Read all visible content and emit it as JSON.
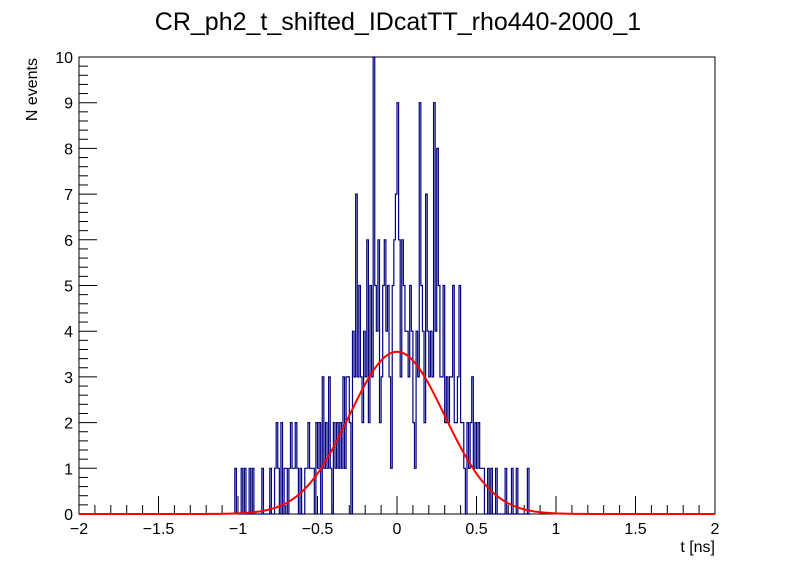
{
  "chart_data": {
    "type": "histogram",
    "title": "CR_ph2_t_shifted_IDcatTT_rho440-2000_1",
    "xlabel": "t [ns]",
    "ylabel": "N events",
    "xlim": [
      -2,
      2
    ],
    "ylim": [
      0,
      10
    ],
    "x_ticks": [
      -2,
      -1.5,
      -1,
      -0.5,
      0,
      0.5,
      1,
      1.5,
      2
    ],
    "x_tick_labels": [
      "−2",
      "−1.5",
      "−1",
      "−0.5",
      "0",
      "0.5",
      "1",
      "1.5",
      "2"
    ],
    "y_ticks": [
      0,
      1,
      2,
      3,
      4,
      5,
      6,
      7,
      8,
      9,
      10
    ],
    "y_tick_labels": [
      "0",
      "1",
      "2",
      "3",
      "4",
      "5",
      "6",
      "7",
      "8",
      "9",
      "10"
    ],
    "histogram": {
      "name": "data",
      "color": "#000080",
      "bin_width": 0.01,
      "bins": [
        [
          -1.02,
          1
        ],
        [
          -1.01,
          0
        ],
        [
          -1.0,
          0
        ],
        [
          -0.99,
          0
        ],
        [
          -0.98,
          1
        ],
        [
          -0.97,
          0
        ],
        [
          -0.96,
          1
        ],
        [
          -0.95,
          0
        ],
        [
          -0.94,
          0
        ],
        [
          -0.93,
          1
        ],
        [
          -0.92,
          0
        ],
        [
          -0.91,
          1
        ],
        [
          -0.9,
          0
        ],
        [
          -0.89,
          0
        ],
        [
          -0.88,
          0
        ],
        [
          -0.87,
          0
        ],
        [
          -0.86,
          0
        ],
        [
          -0.85,
          1
        ],
        [
          -0.84,
          0
        ],
        [
          -0.83,
          0
        ],
        [
          -0.82,
          0
        ],
        [
          -0.81,
          0
        ],
        [
          -0.8,
          1
        ],
        [
          -0.79,
          0
        ],
        [
          -0.78,
          0
        ],
        [
          -0.77,
          1
        ],
        [
          -0.76,
          2
        ],
        [
          -0.75,
          1
        ],
        [
          -0.74,
          0
        ],
        [
          -0.73,
          2
        ],
        [
          -0.72,
          0
        ],
        [
          -0.71,
          1
        ],
        [
          -0.7,
          1
        ],
        [
          -0.69,
          0
        ],
        [
          -0.68,
          1
        ],
        [
          -0.67,
          2
        ],
        [
          -0.66,
          1
        ],
        [
          -0.65,
          1
        ],
        [
          -0.64,
          2
        ],
        [
          -0.63,
          1
        ],
        [
          -0.62,
          0
        ],
        [
          -0.61,
          1
        ],
        [
          -0.6,
          0
        ],
        [
          -0.59,
          0
        ],
        [
          -0.58,
          1
        ],
        [
          -0.57,
          1
        ],
        [
          -0.56,
          2
        ],
        [
          -0.55,
          1
        ],
        [
          -0.54,
          1
        ],
        [
          -0.53,
          1
        ],
        [
          -0.52,
          0
        ],
        [
          -0.51,
          2
        ],
        [
          -0.5,
          1
        ],
        [
          -0.49,
          2
        ],
        [
          -0.48,
          0
        ],
        [
          -0.47,
          3
        ],
        [
          -0.46,
          1
        ],
        [
          -0.45,
          2
        ],
        [
          -0.44,
          1
        ],
        [
          -0.43,
          3
        ],
        [
          -0.42,
          1
        ],
        [
          -0.41,
          0
        ],
        [
          -0.4,
          2
        ],
        [
          -0.39,
          1
        ],
        [
          -0.38,
          2
        ],
        [
          -0.37,
          1
        ],
        [
          -0.36,
          2
        ],
        [
          -0.35,
          1
        ],
        [
          -0.34,
          3
        ],
        [
          -0.33,
          1
        ],
        [
          -0.32,
          3
        ],
        [
          -0.31,
          3
        ],
        [
          -0.3,
          2
        ],
        [
          -0.29,
          0
        ],
        [
          -0.28,
          4
        ],
        [
          -0.27,
          3
        ],
        [
          -0.26,
          7
        ],
        [
          -0.25,
          3
        ],
        [
          -0.24,
          5
        ],
        [
          -0.23,
          3
        ],
        [
          -0.22,
          2
        ],
        [
          -0.21,
          4
        ],
        [
          -0.2,
          3
        ],
        [
          -0.19,
          6
        ],
        [
          -0.18,
          2
        ],
        [
          -0.17,
          5
        ],
        [
          -0.16,
          3
        ],
        [
          -0.15,
          10
        ],
        [
          -0.14,
          5
        ],
        [
          -0.13,
          4
        ],
        [
          -0.12,
          6
        ],
        [
          -0.11,
          2
        ],
        [
          -0.1,
          3
        ],
        [
          -0.09,
          5
        ],
        [
          -0.08,
          6
        ],
        [
          -0.07,
          4
        ],
        [
          -0.06,
          5
        ],
        [
          -0.05,
          3
        ],
        [
          -0.04,
          1
        ],
        [
          -0.03,
          5
        ],
        [
          -0.02,
          6
        ],
        [
          -0.01,
          7
        ],
        [
          0.0,
          9
        ],
        [
          0.01,
          6
        ],
        [
          0.02,
          3
        ],
        [
          0.03,
          6
        ],
        [
          0.04,
          5
        ],
        [
          0.05,
          4
        ],
        [
          0.06,
          4
        ],
        [
          0.07,
          3
        ],
        [
          0.08,
          5
        ],
        [
          0.09,
          4
        ],
        [
          0.1,
          2
        ],
        [
          0.11,
          1
        ],
        [
          0.12,
          4
        ],
        [
          0.13,
          3
        ],
        [
          0.14,
          9
        ],
        [
          0.15,
          5
        ],
        [
          0.16,
          4
        ],
        [
          0.17,
          2
        ],
        [
          0.18,
          7
        ],
        [
          0.19,
          4
        ],
        [
          0.2,
          3
        ],
        [
          0.21,
          4
        ],
        [
          0.22,
          3
        ],
        [
          0.23,
          9
        ],
        [
          0.24,
          4
        ],
        [
          0.25,
          8
        ],
        [
          0.26,
          5
        ],
        [
          0.27,
          3
        ],
        [
          0.28,
          3
        ],
        [
          0.29,
          5
        ],
        [
          0.3,
          2
        ],
        [
          0.31,
          3
        ],
        [
          0.32,
          2
        ],
        [
          0.33,
          3
        ],
        [
          0.34,
          3
        ],
        [
          0.35,
          5
        ],
        [
          0.36,
          2
        ],
        [
          0.37,
          2
        ],
        [
          0.38,
          3
        ],
        [
          0.39,
          5
        ],
        [
          0.4,
          2
        ],
        [
          0.41,
          2
        ],
        [
          0.42,
          1
        ],
        [
          0.43,
          0
        ],
        [
          0.44,
          2
        ],
        [
          0.45,
          1
        ],
        [
          0.46,
          2
        ],
        [
          0.47,
          3
        ],
        [
          0.48,
          1
        ],
        [
          0.49,
          2
        ],
        [
          0.5,
          1
        ],
        [
          0.51,
          2
        ],
        [
          0.52,
          1
        ],
        [
          0.53,
          1
        ],
        [
          0.54,
          1
        ],
        [
          0.55,
          0
        ],
        [
          0.56,
          0
        ],
        [
          0.57,
          1
        ],
        [
          0.58,
          0
        ],
        [
          0.59,
          1
        ],
        [
          0.6,
          0
        ],
        [
          0.61,
          0
        ],
        [
          0.62,
          1
        ],
        [
          0.63,
          0
        ],
        [
          0.64,
          0
        ],
        [
          0.65,
          0
        ],
        [
          0.66,
          0
        ],
        [
          0.67,
          0
        ],
        [
          0.68,
          1
        ],
        [
          0.69,
          0
        ],
        [
          0.7,
          0
        ],
        [
          0.71,
          0
        ],
        [
          0.72,
          1
        ],
        [
          0.73,
          0
        ],
        [
          0.74,
          0
        ],
        [
          0.75,
          1
        ],
        [
          0.76,
          0
        ],
        [
          0.77,
          0
        ],
        [
          0.78,
          0
        ],
        [
          0.79,
          0
        ],
        [
          0.8,
          0
        ],
        [
          0.81,
          0
        ],
        [
          0.82,
          1
        ],
        [
          0.83,
          0
        ]
      ]
    },
    "fit": {
      "name": "gaussian-fit",
      "color": "#ff0000",
      "function": "gaussian",
      "amplitude": 3.55,
      "mean": 0.0,
      "sigma": 0.3
    }
  }
}
